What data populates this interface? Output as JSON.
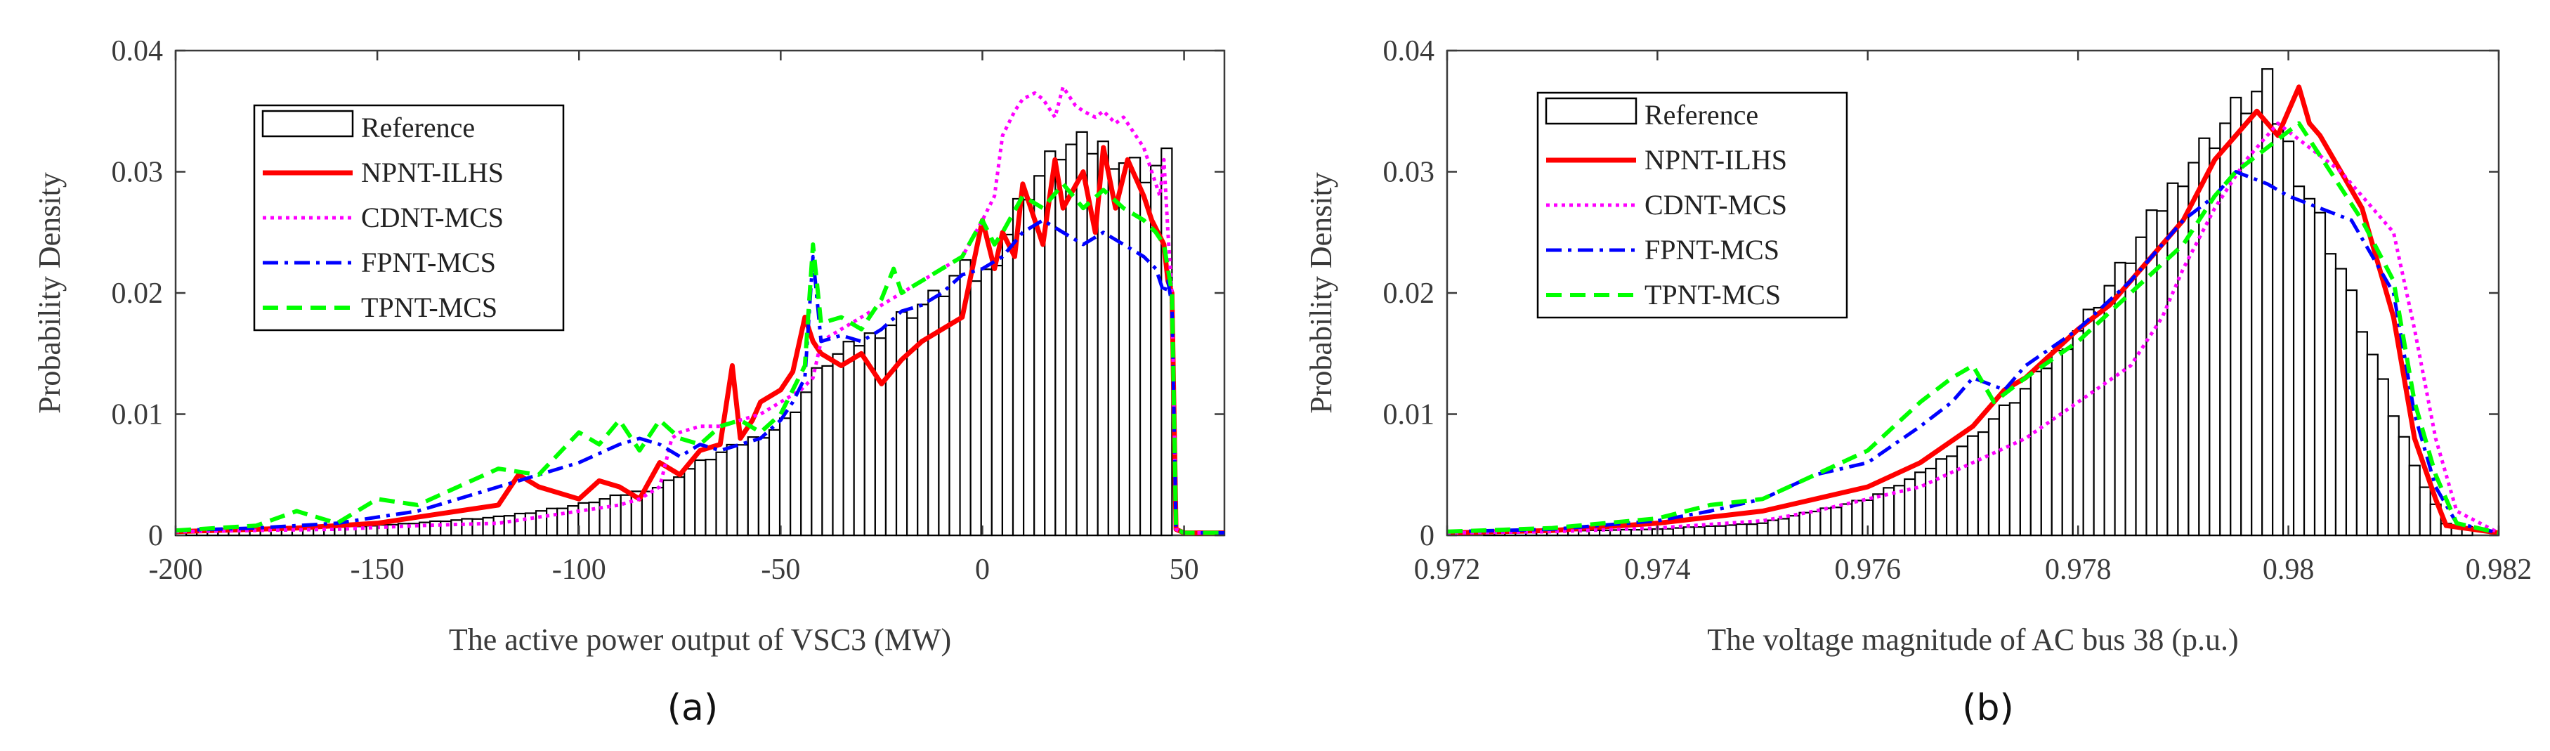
{
  "colors": {
    "reference_fill": "#ffffff",
    "reference_edge": "#000000",
    "npnt_ilhs": "#ff0000",
    "cdnt_mcs": "#ff00ff",
    "fpnt_mcs": "#0000ff",
    "tpnt_mcs": "#00ff00",
    "axis": "#3a3a3a"
  },
  "chart_data": [
    {
      "type": "bar",
      "panel_label": "(a)",
      "title": "",
      "xlabel": "The active power output  of VSC3 (MW)",
      "ylabel": "Probability Density",
      "xlim": [
        -200,
        60
      ],
      "ylim": [
        0,
        0.04
      ],
      "xticks": [
        -200,
        -150,
        -100,
        -50,
        0,
        50
      ],
      "xtick_labels": [
        "-200",
        "-150",
        "-100",
        "-50",
        "0",
        "50"
      ],
      "yticks": [
        0,
        0.01,
        0.02,
        0.03,
        0.04
      ],
      "ytick_labels": [
        "0",
        "0.01",
        "0.02",
        "0.03",
        "0.04"
      ],
      "legend_position": "top-left",
      "legend": [
        "Reference",
        "NPNT-ILHS",
        "CDNT-MCS",
        "FPNT-MCS",
        "TPNT-MCS"
      ],
      "histogram": {
        "name": "Reference",
        "anchors_x": [
          -200,
          -150,
          -120,
          -100,
          -80,
          -70,
          -60,
          -50,
          -45,
          -40,
          -30,
          -20,
          -10,
          -5,
          0,
          5,
          10,
          15,
          20,
          30,
          40,
          46
        ],
        "anchors_y": [
          0.0002,
          0.0008,
          0.0015,
          0.0025,
          0.004,
          0.006,
          0.0075,
          0.009,
          0.011,
          0.014,
          0.016,
          0.018,
          0.02,
          0.022,
          0.021,
          0.024,
          0.028,
          0.03,
          0.032,
          0.032,
          0.03,
          0.031
        ],
        "bin_start": -200,
        "bin_end": 47,
        "n_bins": 94
      },
      "series": [
        {
          "name": "NPNT-ILHS",
          "x": [
            -200,
            -180,
            -170,
            -160,
            -150,
            -140,
            -130,
            -120,
            -115,
            -110,
            -100,
            -95,
            -90,
            -85,
            -80,
            -75,
            -70,
            -65,
            -62,
            -60,
            -57,
            -55,
            -50,
            -47,
            -44,
            -42,
            -40,
            -35,
            -30,
            -25,
            -20,
            -15,
            -10,
            -5,
            0,
            3,
            5,
            8,
            10,
            15,
            18,
            20,
            25,
            28,
            30,
            33,
            36,
            40,
            42,
            45,
            46,
            47,
            48,
            50,
            60
          ],
          "y": [
            0.0003,
            0.0005,
            0.0006,
            0.0008,
            0.001,
            0.0015,
            0.002,
            0.0025,
            0.005,
            0.004,
            0.003,
            0.0045,
            0.004,
            0.003,
            0.006,
            0.005,
            0.007,
            0.0075,
            0.014,
            0.008,
            0.0095,
            0.011,
            0.012,
            0.0135,
            0.018,
            0.016,
            0.015,
            0.014,
            0.015,
            0.0125,
            0.0145,
            0.016,
            0.017,
            0.018,
            0.026,
            0.022,
            0.025,
            0.023,
            0.029,
            0.024,
            0.031,
            0.027,
            0.03,
            0.025,
            0.032,
            0.027,
            0.031,
            0.028,
            0.026,
            0.024,
            0.021,
            0.02,
            0.0005,
            0.0002,
            0.0002
          ]
        },
        {
          "name": "CDNT-MCS",
          "x": [
            -200,
            -180,
            -160,
            -140,
            -120,
            -110,
            -100,
            -90,
            -85,
            -80,
            -77,
            -75,
            -70,
            -65,
            -60,
            -55,
            -50,
            -45,
            -42,
            -40,
            -35,
            -30,
            -25,
            -20,
            -15,
            -10,
            -5,
            0,
            3,
            5,
            8,
            10,
            13,
            15,
            18,
            20,
            23,
            25,
            28,
            30,
            33,
            35,
            38,
            40,
            42,
            44,
            45,
            46,
            47,
            48,
            50,
            60
          ],
          "y": [
            0.0003,
            0.0004,
            0.0005,
            0.0008,
            0.001,
            0.0015,
            0.002,
            0.0025,
            0.003,
            0.004,
            0.008,
            0.0085,
            0.009,
            0.009,
            0.0095,
            0.01,
            0.011,
            0.012,
            0.013,
            0.016,
            0.017,
            0.018,
            0.019,
            0.02,
            0.021,
            0.022,
            0.023,
            0.026,
            0.028,
            0.033,
            0.035,
            0.036,
            0.0365,
            0.036,
            0.0345,
            0.037,
            0.0355,
            0.035,
            0.0345,
            0.035,
            0.034,
            0.0345,
            0.033,
            0.032,
            0.03,
            0.028,
            0.031,
            0.025,
            0.02,
            0.0005,
            0.0002,
            0.0002
          ]
        },
        {
          "name": "FPNT-MCS",
          "x": [
            -200,
            -180,
            -160,
            -150,
            -140,
            -130,
            -120,
            -110,
            -100,
            -90,
            -85,
            -80,
            -75,
            -70,
            -65,
            -60,
            -55,
            -50,
            -47,
            -44,
            -42,
            -40,
            -35,
            -30,
            -25,
            -20,
            -15,
            -10,
            -5,
            0,
            5,
            10,
            15,
            20,
            25,
            30,
            35,
            40,
            43,
            45,
            46,
            47,
            48,
            50,
            60
          ],
          "y": [
            0.0004,
            0.0006,
            0.001,
            0.0015,
            0.002,
            0.003,
            0.004,
            0.005,
            0.006,
            0.0075,
            0.008,
            0.0075,
            0.0065,
            0.0075,
            0.007,
            0.0075,
            0.008,
            0.0095,
            0.011,
            0.013,
            0.023,
            0.016,
            0.0165,
            0.016,
            0.017,
            0.0185,
            0.019,
            0.02,
            0.0215,
            0.022,
            0.023,
            0.025,
            0.026,
            0.025,
            0.024,
            0.025,
            0.024,
            0.023,
            0.022,
            0.02,
            0.021,
            0.019,
            0.0005,
            0.0002,
            0.0002
          ]
        },
        {
          "name": "TPNT-MCS",
          "x": [
            -200,
            -180,
            -170,
            -160,
            -150,
            -140,
            -130,
            -120,
            -110,
            -100,
            -95,
            -90,
            -85,
            -80,
            -75,
            -70,
            -65,
            -60,
            -55,
            -50,
            -47,
            -44,
            -42,
            -40,
            -35,
            -30,
            -25,
            -22,
            -20,
            -15,
            -10,
            -5,
            0,
            3,
            5,
            10,
            15,
            20,
            25,
            30,
            35,
            40,
            43,
            45,
            46,
            47,
            48,
            50,
            60
          ],
          "y": [
            0.0004,
            0.0008,
            0.002,
            0.001,
            0.003,
            0.0025,
            0.004,
            0.0055,
            0.005,
            0.0085,
            0.0075,
            0.0095,
            0.007,
            0.0095,
            0.008,
            0.0075,
            0.009,
            0.0095,
            0.0085,
            0.01,
            0.012,
            0.014,
            0.024,
            0.0175,
            0.018,
            0.017,
            0.0195,
            0.022,
            0.02,
            0.021,
            0.022,
            0.023,
            0.026,
            0.024,
            0.025,
            0.028,
            0.027,
            0.029,
            0.027,
            0.0285,
            0.027,
            0.026,
            0.025,
            0.024,
            0.022,
            0.02,
            0.0005,
            0.0002,
            0.0002
          ]
        }
      ]
    },
    {
      "type": "bar",
      "panel_label": "(b)",
      "title": "",
      "xlabel": "The voltage magnitude  of AC bus 38 (p.u.)",
      "ylabel": "Probability Density",
      "xlim": [
        0.972,
        0.982
      ],
      "ylim": [
        0,
        0.04
      ],
      "xticks": [
        0.972,
        0.974,
        0.976,
        0.978,
        0.98,
        0.982
      ],
      "xtick_labels": [
        "0.972",
        "0.974",
        "0.976",
        "0.978",
        "0.98",
        "0.982"
      ],
      "yticks": [
        0,
        0.01,
        0.02,
        0.03,
        0.04
      ],
      "ytick_labels": [
        "0",
        "0.01",
        "0.02",
        "0.03",
        "0.04"
      ],
      "legend_position": "top-left",
      "legend": [
        "Reference",
        "NPNT-ILHS",
        "CDNT-MCS",
        "FPNT-MCS",
        "TPNT-MCS"
      ],
      "histogram": {
        "name": "Reference",
        "anchors_x": [
          0.972,
          0.974,
          0.975,
          0.9755,
          0.976,
          0.9765,
          0.977,
          0.9775,
          0.978,
          0.9785,
          0.979,
          0.9795,
          0.9798,
          0.98,
          0.9805,
          0.981,
          0.9813,
          0.9815,
          0.982
        ],
        "anchors_y": [
          0.0002,
          0.0005,
          0.001,
          0.002,
          0.003,
          0.005,
          0.008,
          0.012,
          0.017,
          0.023,
          0.03,
          0.035,
          0.037,
          0.032,
          0.022,
          0.01,
          0.004,
          0.001,
          0.0002
        ],
        "bin_start": 0.97235,
        "bin_end": 0.98175,
        "n_bins": 94
      },
      "series": [
        {
          "name": "NPNT-ILHS",
          "x": [
            0.972,
            0.973,
            0.974,
            0.9745,
            0.975,
            0.9755,
            0.976,
            0.9765,
            0.977,
            0.9773,
            0.9775,
            0.978,
            0.9783,
            0.9785,
            0.979,
            0.9793,
            0.9795,
            0.9797,
            0.9799,
            0.9801,
            0.9802,
            0.9803,
            0.9805,
            0.9807,
            0.981,
            0.9812,
            0.9814,
            0.9815,
            0.982
          ],
          "y": [
            0.0002,
            0.0004,
            0.001,
            0.0015,
            0.002,
            0.003,
            0.004,
            0.006,
            0.009,
            0.012,
            0.013,
            0.017,
            0.019,
            0.021,
            0.026,
            0.031,
            0.033,
            0.035,
            0.033,
            0.037,
            0.034,
            0.033,
            0.03,
            0.027,
            0.018,
            0.008,
            0.003,
            0.0008,
            0.0002
          ]
        },
        {
          "name": "CDNT-MCS",
          "x": [
            0.972,
            0.973,
            0.974,
            0.975,
            0.9755,
            0.976,
            0.9765,
            0.977,
            0.9775,
            0.978,
            0.9785,
            0.9788,
            0.979,
            0.9793,
            0.9796,
            0.9799,
            0.9802,
            0.9805,
            0.9808,
            0.981,
            0.9812,
            0.9814,
            0.9816,
            0.982
          ],
          "y": [
            0.0002,
            0.0003,
            0.0006,
            0.0012,
            0.002,
            0.003,
            0.004,
            0.006,
            0.008,
            0.011,
            0.014,
            0.018,
            0.022,
            0.027,
            0.031,
            0.034,
            0.032,
            0.03,
            0.027,
            0.025,
            0.017,
            0.008,
            0.002,
            0.0002
          ]
        },
        {
          "name": "FPNT-MCS",
          "x": [
            0.972,
            0.973,
            0.974,
            0.9745,
            0.975,
            0.9755,
            0.976,
            0.9765,
            0.9768,
            0.977,
            0.9773,
            0.9775,
            0.978,
            0.9785,
            0.979,
            0.9793,
            0.9795,
            0.9798,
            0.98,
            0.9803,
            0.9806,
            0.981,
            0.9812,
            0.9814,
            0.9816,
            0.982
          ],
          "y": [
            0.0003,
            0.0005,
            0.0012,
            0.002,
            0.003,
            0.005,
            0.006,
            0.009,
            0.011,
            0.013,
            0.012,
            0.014,
            0.017,
            0.021,
            0.026,
            0.028,
            0.03,
            0.029,
            0.028,
            0.027,
            0.026,
            0.02,
            0.01,
            0.004,
            0.001,
            0.0002
          ]
        },
        {
          "name": "TPNT-MCS",
          "x": [
            0.972,
            0.973,
            0.974,
            0.9745,
            0.975,
            0.9755,
            0.976,
            0.9765,
            0.9768,
            0.977,
            0.9772,
            0.9775,
            0.978,
            0.9785,
            0.979,
            0.9793,
            0.9795,
            0.9798,
            0.9801,
            0.9804,
            0.9807,
            0.981,
            0.9812,
            0.9814,
            0.9816,
            0.982
          ],
          "y": [
            0.0003,
            0.0006,
            0.0014,
            0.0025,
            0.003,
            0.005,
            0.007,
            0.011,
            0.013,
            0.014,
            0.011,
            0.013,
            0.016,
            0.02,
            0.024,
            0.028,
            0.03,
            0.032,
            0.034,
            0.03,
            0.026,
            0.021,
            0.011,
            0.005,
            0.001,
            0.0002
          ]
        }
      ]
    }
  ]
}
